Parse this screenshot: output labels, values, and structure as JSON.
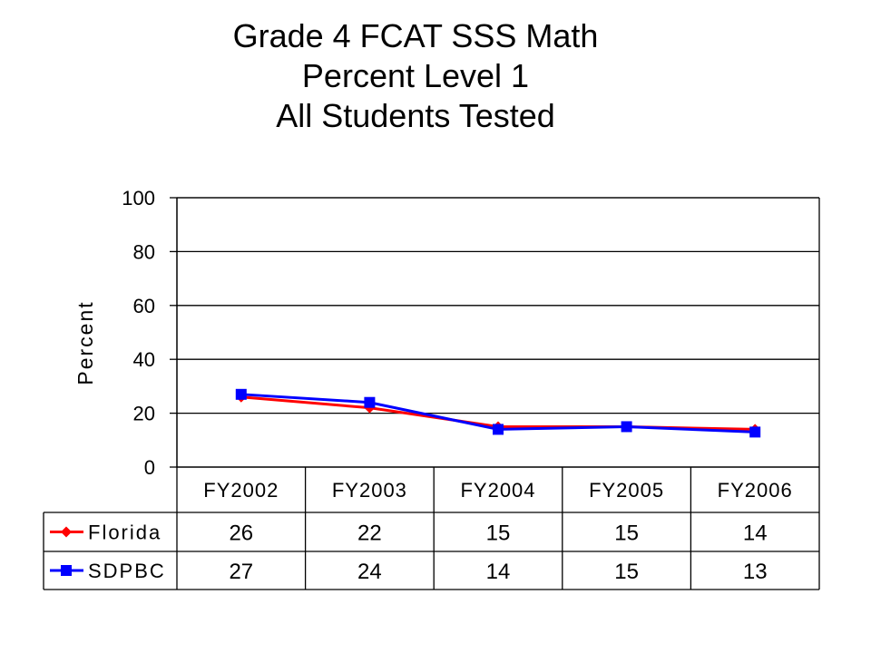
{
  "chart_data": {
    "type": "line",
    "title_lines": [
      "Grade 4 FCAT SSS Math",
      "Percent Level 1",
      "All Students Tested"
    ],
    "ylabel": "Percent",
    "ylim": [
      0,
      100
    ],
    "yticks": [
      "0",
      "20",
      "40",
      "60",
      "80",
      "100"
    ],
    "grid": true,
    "categories": [
      "FY2002",
      "FY2003",
      "FY2004",
      "FY2005",
      "FY2006"
    ],
    "series": [
      {
        "name": "Florida",
        "values": [
          26,
          22,
          15,
          15,
          14
        ],
        "color": "#ff0000",
        "marker": "diamond"
      },
      {
        "name": "SDPBC",
        "values": [
          27,
          24,
          14,
          15,
          13
        ],
        "color": "#0000ff",
        "marker": "square"
      }
    ],
    "data_table": {
      "rows": [
        {
          "label": "Florida",
          "cells": [
            "26",
            "22",
            "15",
            "15",
            "14"
          ]
        },
        {
          "label": "SDPBC",
          "cells": [
            "27",
            "24",
            "14",
            "15",
            "13"
          ]
        }
      ]
    }
  }
}
